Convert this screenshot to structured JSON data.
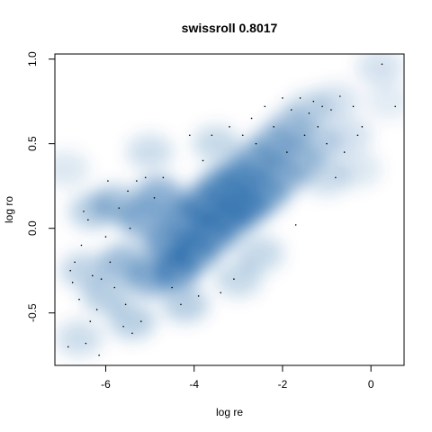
{
  "chart_data": {
    "type": "scatter",
    "title": "swissroll 0.8017",
    "xlabel": "log re",
    "ylabel": "log ro",
    "xlim": [
      -7.15,
      0.75
    ],
    "ylim": [
      -0.81,
      1.03
    ],
    "xticks": [
      -6,
      -4,
      -2,
      0
    ],
    "yticks": [
      -0.5,
      0.0,
      0.5,
      1.0
    ],
    "xtick_labels": [
      "-6",
      "-4",
      "-2",
      "0"
    ],
    "ytick_labels": [
      "-0.5",
      "0.0",
      "0.5",
      "1.0"
    ],
    "grid": false,
    "density_color": "#08519c",
    "point_color": "#000000",
    "density_centers": [
      [
        -6.9,
        0.35,
        0.25
      ],
      [
        -6.5,
        -0.25,
        0.45
      ],
      [
        -6.3,
        0.1,
        0.5
      ],
      [
        -6.0,
        -0.4,
        0.5
      ],
      [
        -5.8,
        0.15,
        0.6
      ],
      [
        -5.6,
        -0.2,
        0.7
      ],
      [
        -5.4,
        -0.55,
        0.5
      ],
      [
        -5.2,
        0.05,
        0.8
      ],
      [
        -5.0,
        -0.3,
        0.8
      ],
      [
        -4.8,
        0.2,
        0.8
      ],
      [
        -4.6,
        -0.1,
        1.0
      ],
      [
        -4.4,
        -0.25,
        1.0
      ],
      [
        -4.2,
        0.05,
        1.0
      ],
      [
        -4.0,
        -0.15,
        0.95
      ],
      [
        -3.8,
        0.15,
        1.0
      ],
      [
        -3.6,
        -0.05,
        1.0
      ],
      [
        -3.4,
        0.25,
        0.9
      ],
      [
        -3.2,
        0.05,
        1.0
      ],
      [
        -3.0,
        0.3,
        0.9
      ],
      [
        -2.8,
        0.12,
        1.0
      ],
      [
        -2.6,
        0.4,
        0.8
      ],
      [
        -2.4,
        0.2,
        0.85
      ],
      [
        -2.2,
        0.5,
        0.7
      ],
      [
        -2.0,
        0.3,
        0.7
      ],
      [
        -1.8,
        0.6,
        0.55
      ],
      [
        -1.6,
        0.4,
        0.55
      ],
      [
        -1.4,
        0.7,
        0.4
      ],
      [
        -1.2,
        0.5,
        0.45
      ],
      [
        -1.0,
        0.3,
        0.35
      ],
      [
        -0.8,
        0.75,
        0.3
      ],
      [
        -0.5,
        0.55,
        0.3
      ],
      [
        -0.3,
        0.35,
        0.25
      ],
      [
        0.2,
        0.95,
        0.3
      ],
      [
        0.4,
        0.75,
        0.2
      ],
      [
        -5.0,
        0.45,
        0.35
      ],
      [
        -3.5,
        0.5,
        0.4
      ],
      [
        -4.2,
        -0.45,
        0.5
      ],
      [
        -3.0,
        -0.3,
        0.4
      ],
      [
        -6.6,
        -0.65,
        0.35
      ],
      [
        -2.5,
        -0.15,
        0.4
      ]
    ],
    "points": [
      [
        -6.85,
        -0.7
      ],
      [
        -6.8,
        -0.25
      ],
      [
        -6.75,
        -0.32
      ],
      [
        -6.7,
        -0.2
      ],
      [
        -6.6,
        -0.42
      ],
      [
        -6.55,
        -0.1
      ],
      [
        -6.5,
        0.1
      ],
      [
        -6.45,
        -0.68
      ],
      [
        -6.4,
        0.05
      ],
      [
        -6.35,
        -0.55
      ],
      [
        -6.3,
        -0.28
      ],
      [
        -6.2,
        -0.48
      ],
      [
        -6.15,
        -0.75
      ],
      [
        -6.1,
        -0.3
      ],
      [
        -6.0,
        -0.05
      ],
      [
        -5.95,
        0.28
      ],
      [
        -5.9,
        -0.2
      ],
      [
        -5.8,
        -0.35
      ],
      [
        -5.7,
        0.12
      ],
      [
        -5.6,
        -0.58
      ],
      [
        -5.55,
        -0.45
      ],
      [
        -5.5,
        0.22
      ],
      [
        -5.45,
        0.0
      ],
      [
        -5.4,
        -0.62
      ],
      [
        -5.3,
        0.28
      ],
      [
        -5.2,
        -0.55
      ],
      [
        -5.1,
        0.3
      ],
      [
        -4.9,
        0.18
      ],
      [
        -4.7,
        0.3
      ],
      [
        -4.5,
        -0.35
      ],
      [
        -4.3,
        -0.45
      ],
      [
        -4.1,
        0.55
      ],
      [
        -3.9,
        -0.4
      ],
      [
        -3.8,
        0.4
      ],
      [
        -3.6,
        0.55
      ],
      [
        -3.4,
        -0.38
      ],
      [
        -3.2,
        0.6
      ],
      [
        -3.1,
        -0.3
      ],
      [
        -2.9,
        0.55
      ],
      [
        -2.7,
        0.65
      ],
      [
        -2.6,
        0.5
      ],
      [
        -2.4,
        0.72
      ],
      [
        -2.2,
        0.6
      ],
      [
        -2.0,
        0.77
      ],
      [
        -1.9,
        0.45
      ],
      [
        -1.8,
        0.7
      ],
      [
        -1.7,
        0.02
      ],
      [
        -1.6,
        0.77
      ],
      [
        -1.5,
        0.55
      ],
      [
        -1.4,
        0.68
      ],
      [
        -1.3,
        0.75
      ],
      [
        -1.2,
        0.6
      ],
      [
        -1.1,
        0.72
      ],
      [
        -1.0,
        0.5
      ],
      [
        -0.9,
        0.7
      ],
      [
        -0.8,
        0.3
      ],
      [
        -0.7,
        0.78
      ],
      [
        -0.6,
        0.45
      ],
      [
        -0.4,
        0.72
      ],
      [
        -0.3,
        0.55
      ],
      [
        -0.2,
        0.6
      ],
      [
        0.25,
        0.97
      ],
      [
        0.55,
        0.72
      ]
    ]
  }
}
